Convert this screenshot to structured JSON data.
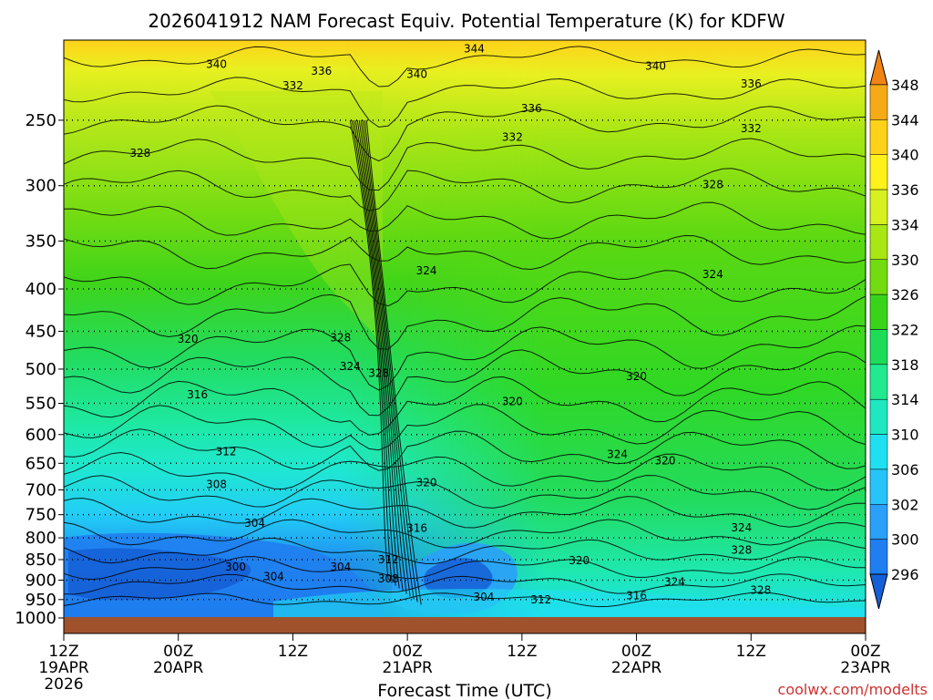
{
  "chart_data": {
    "type": "heatmap",
    "title": "2026041912 NAM Forecast Equiv. Potential Temperature (K) for KDFW",
    "xlabel": "Forecast Time (UTC)",
    "ylabel": "",
    "credit": "coolwx.com/modelts",
    "x_ticks": [
      {
        "hour": 0,
        "line1": "12Z",
        "line2": "19APR",
        "line3": "2026"
      },
      {
        "hour": 12,
        "line1": "00Z",
        "line2": "20APR",
        "line3": ""
      },
      {
        "hour": 24,
        "line1": "12Z",
        "line2": "",
        "line3": ""
      },
      {
        "hour": 36,
        "line1": "00Z",
        "line2": "21APR",
        "line3": ""
      },
      {
        "hour": 48,
        "line1": "12Z",
        "line2": "",
        "line3": ""
      },
      {
        "hour": 60,
        "line1": "00Z",
        "line2": "22APR",
        "line3": ""
      },
      {
        "hour": 72,
        "line1": "12Z",
        "line2": "",
        "line3": ""
      },
      {
        "hour": 84,
        "line1": "00Z",
        "line2": "23APR",
        "line3": ""
      }
    ],
    "y_scale": "log",
    "y_ticks": [
      "250",
      "300",
      "350",
      "400",
      "450",
      "500",
      "550",
      "600",
      "650",
      "700",
      "750",
      "800",
      "850",
      "900",
      "950",
      "1000"
    ],
    "y_range": [
      1000,
      200
    ],
    "x_range": [
      0,
      84
    ],
    "colorbar": {
      "levels": [
        "296",
        "300",
        "302",
        "306",
        "310",
        "314",
        "318",
        "322",
        "326",
        "330",
        "334",
        "336",
        "340",
        "344",
        "348"
      ],
      "colors": [
        "#1560d6",
        "#1f7ef0",
        "#2aa0f8",
        "#26c4f8",
        "#1fe0f0",
        "#1fe8c0",
        "#22e890",
        "#1edc58",
        "#39d41a",
        "#72dc10",
        "#a8e614",
        "#d6f020",
        "#fff21a",
        "#ffd21a",
        "#f7aa17",
        "#f08414"
      ]
    },
    "contour_labels": [
      {
        "text": "344",
        "hour": 43,
        "p": 205
      },
      {
        "text": "340",
        "hour": 16,
        "p": 214
      },
      {
        "text": "336",
        "hour": 27,
        "p": 218
      },
      {
        "text": "340",
        "hour": 37,
        "p": 220
      },
      {
        "text": "340",
        "hour": 62,
        "p": 215
      },
      {
        "text": "332",
        "hour": 24,
        "p": 227
      },
      {
        "text": "336",
        "hour": 72,
        "p": 226
      },
      {
        "text": "336",
        "hour": 49,
        "p": 242
      },
      {
        "text": "332",
        "hour": 47,
        "p": 262
      },
      {
        "text": "332",
        "hour": 72,
        "p": 256
      },
      {
        "text": "328",
        "hour": 8,
        "p": 274
      },
      {
        "text": "328",
        "hour": 68,
        "p": 299
      },
      {
        "text": "324",
        "hour": 38,
        "p": 380
      },
      {
        "text": "324",
        "hour": 68,
        "p": 384
      },
      {
        "text": "320",
        "hour": 13,
        "p": 460
      },
      {
        "text": "328",
        "hour": 29,
        "p": 458
      },
      {
        "text": "324",
        "hour": 30,
        "p": 496
      },
      {
        "text": "328",
        "hour": 33,
        "p": 506
      },
      {
        "text": "320",
        "hour": 60,
        "p": 510
      },
      {
        "text": "316",
        "hour": 14,
        "p": 537
      },
      {
        "text": "320",
        "hour": 47,
        "p": 547
      },
      {
        "text": "312",
        "hour": 17,
        "p": 629
      },
      {
        "text": "324",
        "hour": 58,
        "p": 634
      },
      {
        "text": "320",
        "hour": 63,
        "p": 645
      },
      {
        "text": "308",
        "hour": 16,
        "p": 689
      },
      {
        "text": "320",
        "hour": 38,
        "p": 686
      },
      {
        "text": "304",
        "hour": 20,
        "p": 768
      },
      {
        "text": "316",
        "hour": 37,
        "p": 779
      },
      {
        "text": "324",
        "hour": 71,
        "p": 778
      },
      {
        "text": "328",
        "hour": 71,
        "p": 828
      },
      {
        "text": "312",
        "hour": 34,
        "p": 850
      },
      {
        "text": "300",
        "hour": 18,
        "p": 867
      },
      {
        "text": "304",
        "hour": 29,
        "p": 867
      },
      {
        "text": "320",
        "hour": 54,
        "p": 852
      },
      {
        "text": "304",
        "hour": 22,
        "p": 891
      },
      {
        "text": "308",
        "hour": 34,
        "p": 897
      },
      {
        "text": "324",
        "hour": 64,
        "p": 905
      },
      {
        "text": "328",
        "hour": 73,
        "p": 925
      },
      {
        "text": "316",
        "hour": 60,
        "p": 940
      },
      {
        "text": "304",
        "hour": 44,
        "p": 943
      },
      {
        "text": "312",
        "hour": 50,
        "p": 951
      }
    ]
  }
}
